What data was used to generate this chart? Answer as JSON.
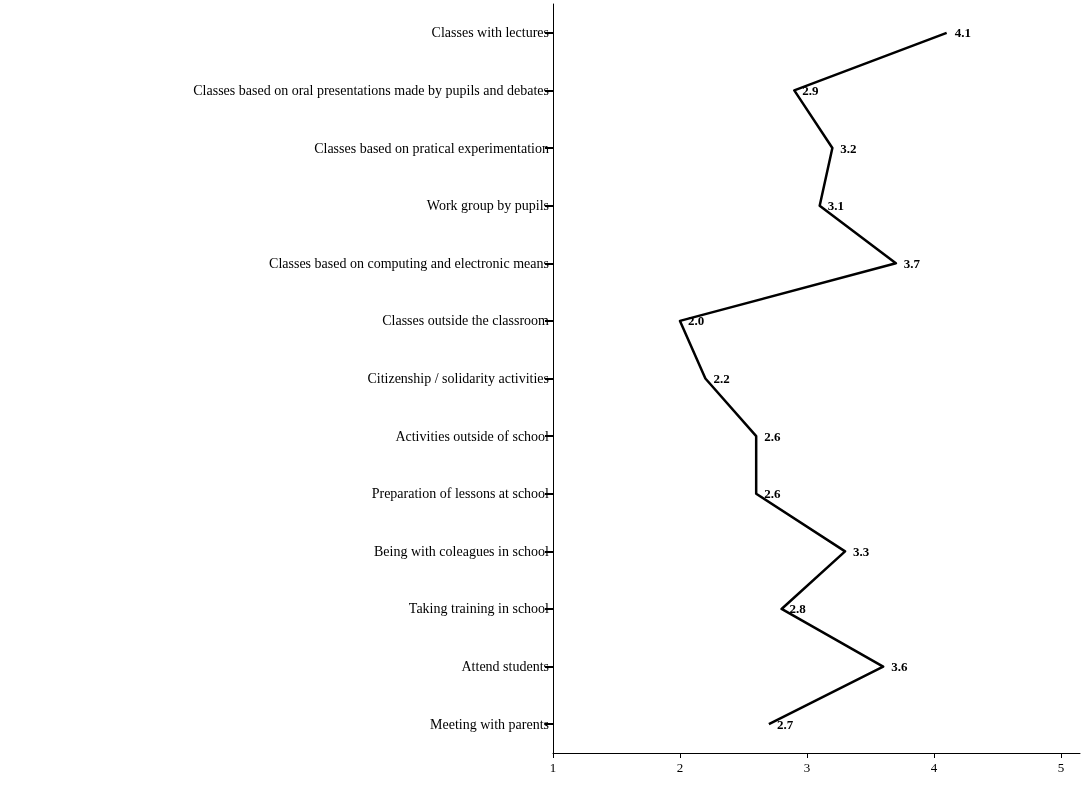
{
  "chart_data": {
    "type": "line",
    "orientation": "horizontal",
    "categories": [
      "Classes with lectures",
      "Classes based on oral presentations made by pupils and debates",
      "Classes based on pratical experimentation",
      "Work group by pupils",
      "Classes based on computing and electronic means",
      "Classes outside the classroom",
      "Citizenship / solidarity activities",
      "Activities outside of school",
      "Preparation of lessons at school",
      "Being with coleagues in school",
      "Taking training in school",
      "Attend students",
      "Meeting with parents"
    ],
    "series": [
      {
        "color": "#000000",
        "values": [
          4.1,
          2.9,
          3.2,
          3.1,
          3.7,
          2.0,
          2.2,
          2.6,
          2.6,
          3.3,
          2.8,
          3.6,
          2.7
        ],
        "value_labels": [
          "4.1",
          "2.9",
          "3.2",
          "3.1",
          "3.7",
          "2.0",
          "2.2",
          "2.6",
          "2.6",
          "3.3",
          "2.8",
          "3.6",
          "2.7"
        ]
      }
    ],
    "xlim": [
      1,
      5.15
    ],
    "xticks": [
      1,
      2,
      3,
      4,
      5
    ],
    "grid": false,
    "marker": "none",
    "line_style": "solid"
  }
}
